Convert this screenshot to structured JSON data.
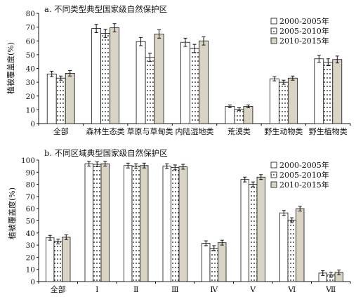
{
  "legend_labels": [
    "2000-2005年",
    "2005-2010年",
    "2010-2015年"
  ],
  "series_styles": [
    {
      "fill": "#ffffff",
      "pattern": "none"
    },
    {
      "fill": "#ffffff",
      "pattern": "dots"
    },
    {
      "fill": "#d9d4c4",
      "pattern": "none"
    }
  ],
  "chart_data": [
    {
      "type": "bar",
      "title": "a. 不同类型典型国家级自然保护区",
      "ylabel": "植被覆盖度(%)",
      "xlabel": "",
      "ylim": [
        0,
        80
      ],
      "yticks": [
        0,
        10,
        20,
        30,
        40,
        50,
        60,
        70,
        80
      ],
      "categories": [
        "全部",
        "森林生态类",
        "草原与草甸类",
        "内陆湿地类",
        "荒漠类",
        "野生动物类",
        "野生植物类"
      ],
      "series": [
        {
          "name": "2000-2005年",
          "values": [
            36,
            69,
            59.5,
            59,
            12.5,
            32.5,
            47
          ],
          "errors": [
            2,
            3,
            3,
            3,
            1,
            1.5,
            2.5
          ]
        },
        {
          "name": "2005-2010年",
          "values": [
            33,
            65.5,
            48,
            54.5,
            10.5,
            30,
            44.5
          ],
          "errors": [
            1.5,
            3,
            3,
            3,
            1,
            1.5,
            2.5
          ]
        },
        {
          "name": "2010-2015年",
          "values": [
            36.5,
            69.5,
            65,
            60,
            12.5,
            33,
            46.5
          ],
          "errors": [
            2,
            3,
            3,
            3,
            1,
            1.5,
            2.5
          ]
        }
      ],
      "grid": false,
      "legend": "top-right",
      "error_bars": true
    },
    {
      "type": "bar",
      "title": "b. 不同区域典型国家级自然保护区",
      "ylabel": "植被覆盖度(%)",
      "xlabel": "",
      "ylim": [
        0,
        100
      ],
      "yticks": [
        0,
        10,
        20,
        30,
        40,
        50,
        60,
        70,
        80,
        90,
        100
      ],
      "categories": [
        "全部",
        "Ⅰ",
        "Ⅱ",
        "Ⅲ",
        "Ⅳ",
        "Ⅴ",
        "Ⅵ",
        "Ⅶ"
      ],
      "series": [
        {
          "name": "2000-2005年",
          "values": [
            36,
            97,
            95.5,
            95,
            31.5,
            84,
            56.5,
            7
          ],
          "errors": [
            2,
            2,
            2,
            2,
            2,
            2,
            2,
            2
          ]
        },
        {
          "name": "2005-2010年",
          "values": [
            33,
            96.5,
            95,
            94,
            27.5,
            80,
            50.5,
            5.5
          ],
          "errors": [
            2,
            2,
            2,
            2,
            2,
            2,
            2,
            2
          ]
        },
        {
          "name": "2010-2015年",
          "values": [
            36.5,
            97,
            95.5,
            94.5,
            32,
            86,
            60,
            7.5
          ],
          "errors": [
            2,
            2,
            2,
            2,
            2,
            2,
            2,
            2
          ]
        }
      ],
      "grid": false,
      "legend": "top-right",
      "error_bars": true
    }
  ]
}
